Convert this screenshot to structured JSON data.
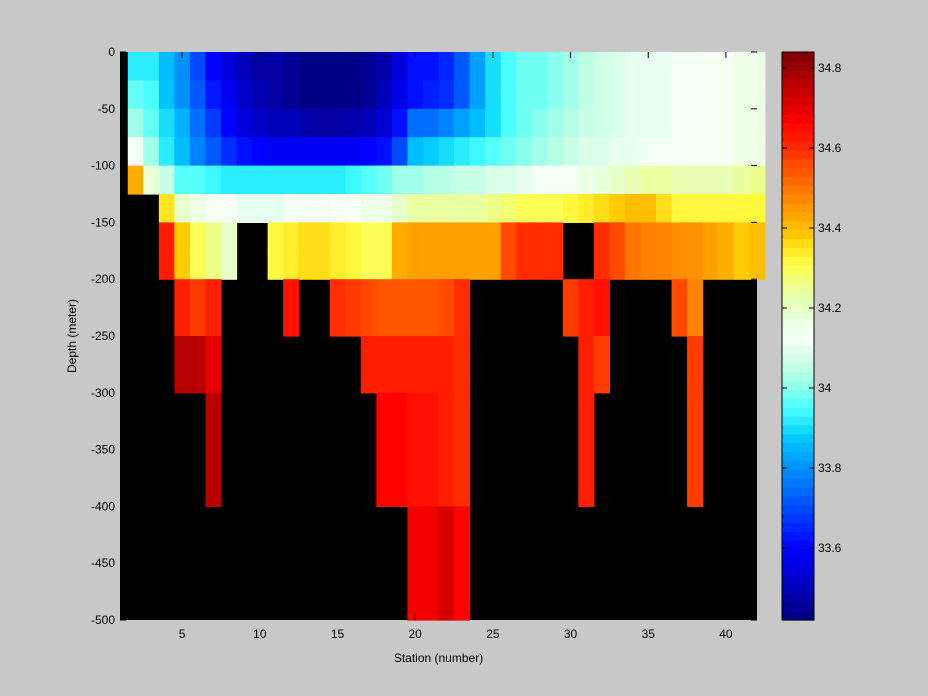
{
  "chart_data": {
    "type": "heatmap",
    "title": "",
    "xlabel": "Station (number)",
    "ylabel": "Depth (meter)",
    "xlim": [
      1,
      42
    ],
    "ylim": [
      -500,
      0
    ],
    "xticks": [
      5,
      10,
      15,
      20,
      25,
      30,
      35,
      40
    ],
    "yticks": [
      0,
      -50,
      -100,
      -150,
      -200,
      -250,
      -300,
      -350,
      -400,
      -450,
      -500
    ],
    "colorbar": {
      "colormap": "jet",
      "clim": [
        33.42,
        34.84
      ],
      "ticks": [
        33.6,
        33.8,
        34,
        34.2,
        34.4,
        34.6,
        34.8
      ],
      "tick_labels": [
        "33.6",
        "33.8",
        "34",
        "34.2",
        "34.4",
        "34.6",
        "34.8"
      ]
    },
    "background_color": "#000000",
    "layers": [
      {
        "depth_range": [
          0,
          -25
        ],
        "x_start": 2,
        "values": [
          33.92,
          33.92,
          33.86,
          33.8,
          33.7,
          33.6,
          33.55,
          33.5,
          33.47,
          33.47,
          33.45,
          33.43,
          33.43,
          33.43,
          33.43,
          33.45,
          33.48,
          33.55,
          33.62,
          33.62,
          33.65,
          33.72,
          33.82,
          33.9,
          33.95,
          33.98,
          33.98,
          34.0,
          34.02,
          34.05,
          34.07,
          34.08,
          34.1,
          34.1,
          34.1,
          34.12,
          34.12,
          34.14,
          34.14,
          34.16,
          34.16
        ]
      },
      {
        "depth_range": [
          -25,
          -50
        ],
        "x_start": 2,
        "values": [
          33.97,
          33.95,
          33.87,
          33.8,
          33.72,
          33.63,
          33.58,
          33.52,
          33.49,
          33.47,
          33.45,
          33.43,
          33.43,
          33.43,
          33.43,
          33.45,
          33.5,
          33.57,
          33.62,
          33.64,
          33.66,
          33.72,
          33.82,
          33.9,
          33.95,
          33.98,
          33.98,
          34.0,
          34.02,
          34.05,
          34.07,
          34.08,
          34.1,
          34.1,
          34.1,
          34.12,
          34.12,
          34.14,
          34.14,
          34.16,
          34.16
        ]
      },
      {
        "depth_range": [
          -50,
          -75
        ],
        "x_start": 2,
        "values": [
          34.02,
          33.97,
          33.9,
          33.85,
          33.75,
          33.68,
          33.6,
          33.55,
          33.52,
          33.5,
          33.5,
          33.48,
          33.47,
          33.47,
          33.48,
          33.5,
          33.53,
          33.62,
          33.75,
          33.75,
          33.78,
          33.82,
          33.86,
          33.9,
          33.95,
          33.98,
          34.0,
          34.02,
          34.04,
          34.06,
          34.07,
          34.08,
          34.1,
          34.1,
          34.1,
          34.12,
          34.12,
          34.14,
          34.14,
          34.16,
          34.16
        ]
      },
      {
        "depth_range": [
          -75,
          -100
        ],
        "x_start": 2,
        "values": [
          34.12,
          34.02,
          33.92,
          33.86,
          33.78,
          33.72,
          33.66,
          33.62,
          33.6,
          33.58,
          33.58,
          33.58,
          33.58,
          33.58,
          33.58,
          33.6,
          33.62,
          33.7,
          33.86,
          33.88,
          33.9,
          33.92,
          33.94,
          33.96,
          33.98,
          34.0,
          34.02,
          34.04,
          34.06,
          34.08,
          34.08,
          34.1,
          34.1,
          34.12,
          34.12,
          34.12,
          34.14,
          34.14,
          34.14,
          34.16,
          34.16
        ]
      },
      {
        "depth_range": [
          -100,
          -125
        ],
        "x_start": 2,
        "values": [
          34.42,
          34.18,
          34.06,
          33.96,
          33.96,
          33.94,
          33.92,
          33.92,
          33.92,
          33.92,
          33.92,
          33.92,
          33.92,
          33.92,
          33.94,
          33.96,
          33.98,
          34.02,
          34.02,
          34.04,
          34.04,
          34.06,
          34.06,
          34.08,
          34.08,
          34.1,
          34.12,
          34.14,
          34.14,
          34.16,
          34.18,
          34.2,
          34.22,
          34.24,
          34.24,
          34.22,
          34.22,
          34.22,
          34.22,
          34.24,
          34.26
        ]
      },
      {
        "depth_range": [
          -125,
          -150
        ],
        "x_start": 4,
        "values": [
          34.35,
          34.2,
          34.16,
          34.14,
          34.12,
          34.1,
          34.1,
          34.1,
          34.12,
          34.12,
          34.12,
          34.14,
          34.14,
          34.16,
          34.16,
          34.2,
          34.24,
          34.24,
          34.24,
          34.24,
          34.24,
          34.26,
          34.28,
          34.3,
          34.3,
          34.3,
          34.32,
          34.34,
          34.36,
          34.38,
          34.4,
          34.4,
          34.36,
          34.32,
          34.32,
          34.32,
          34.32,
          34.32,
          34.32
        ]
      },
      {
        "depth_range": [
          -150,
          -175
        ],
        "x_start": 4,
        "values": [
          34.62,
          34.38,
          34.3,
          34.26,
          34.2,
          null,
          null,
          34.32,
          34.34,
          34.36,
          34.36,
          34.34,
          34.32,
          34.3,
          34.3,
          34.42,
          34.44,
          34.44,
          34.44,
          34.44,
          34.44,
          34.44,
          34.56,
          34.6,
          34.6,
          34.6,
          null,
          null,
          34.6,
          34.56,
          34.5,
          34.48,
          34.48,
          34.46,
          34.46,
          34.44,
          34.42,
          34.38,
          34.4
        ]
      },
      {
        "depth_range": [
          -175,
          -200
        ],
        "x_start": 4,
        "values": [
          34.62,
          34.38,
          34.3,
          34.26,
          34.2,
          null,
          null,
          34.32,
          34.34,
          34.36,
          34.36,
          34.34,
          34.32,
          34.3,
          34.3,
          34.42,
          34.44,
          34.44,
          34.44,
          34.44,
          34.44,
          34.44,
          34.56,
          34.6,
          34.6,
          34.6,
          null,
          null,
          34.6,
          34.56,
          34.5,
          34.48,
          34.48,
          34.46,
          34.46,
          34.44,
          34.42,
          34.38,
          34.4
        ]
      },
      {
        "depth_range": [
          -200,
          -250
        ],
        "x_start": 5,
        "values": [
          34.62,
          34.58,
          34.62,
          null,
          null,
          null,
          null,
          34.64,
          null,
          null,
          34.6,
          34.58,
          34.56,
          34.54,
          34.54,
          34.54,
          34.54,
          34.56,
          34.6,
          null,
          null,
          null,
          null,
          null,
          null,
          34.58,
          34.62,
          34.64,
          null,
          null,
          null,
          null,
          34.56,
          34.48
        ]
      },
      {
        "depth_range": [
          -250,
          -300
        ],
        "x_start": 5,
        "values": [
          34.76,
          34.76,
          34.7,
          null,
          null,
          null,
          null,
          null,
          null,
          null,
          null,
          null,
          34.62,
          34.62,
          34.62,
          34.62,
          34.62,
          34.62,
          34.6,
          null,
          null,
          null,
          null,
          null,
          null,
          null,
          34.62,
          34.58,
          null,
          null,
          null,
          null,
          null,
          34.58
        ]
      },
      {
        "depth_range": [
          -300,
          -400
        ],
        "x_start": 5,
        "values": [
          null,
          null,
          34.76,
          null,
          null,
          null,
          null,
          null,
          null,
          null,
          null,
          null,
          null,
          34.66,
          34.66,
          34.64,
          34.64,
          34.62,
          34.6,
          null,
          null,
          null,
          null,
          null,
          null,
          null,
          34.62,
          null,
          null,
          null,
          null,
          null,
          null,
          34.58
        ]
      },
      {
        "depth_range": [
          -400,
          -500
        ],
        "x_start": 5,
        "values": [
          null,
          null,
          null,
          null,
          null,
          null,
          null,
          null,
          null,
          null,
          null,
          null,
          null,
          null,
          null,
          34.68,
          34.68,
          34.72,
          34.66,
          null,
          null,
          null,
          null,
          null,
          null,
          null,
          null,
          null,
          null,
          null,
          null,
          null,
          null,
          null
        ]
      }
    ]
  }
}
